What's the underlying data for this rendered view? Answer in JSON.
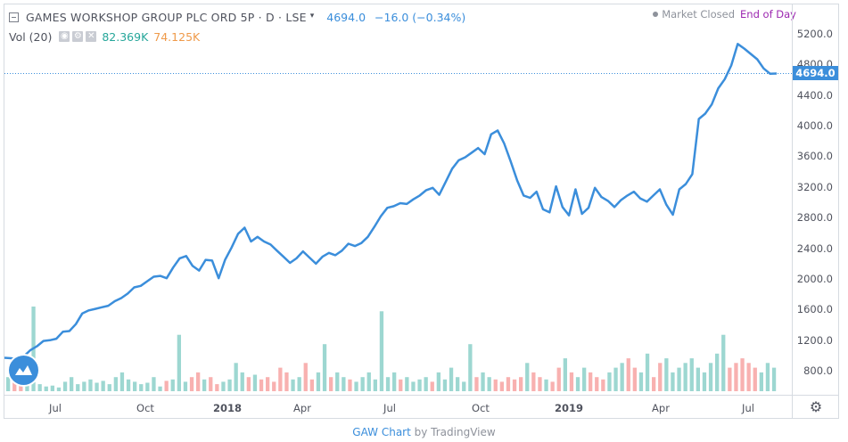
{
  "header": {
    "symbol": "GAMES WORKSHOP GROUP PLC ORD 5P · D · LSE",
    "price": "4694.0",
    "change": "−16.0 (−0.34%)",
    "market_status": "Market Closed",
    "data_mode": "End of Day"
  },
  "volume_indicator": {
    "label": "Vol (20)",
    "value1": "82.369K",
    "value2": "74.125K"
  },
  "price_tag": "4694.0",
  "credit": {
    "link": "GAW Chart",
    "by": "by TradingView"
  },
  "colors": {
    "line": "#3b8edb",
    "volume_up": "#26a69a",
    "volume_down": "#ef5350",
    "status_purple": "#9c27b0"
  },
  "icons": {
    "settings": "gear-icon",
    "logo": "tradingview-logo-icon",
    "collapse": "collapse-icon"
  },
  "chart_data": {
    "type": "line",
    "y_ticks": [
      "5200.0",
      "4800.0",
      "4400.0",
      "4000.0",
      "3600.0",
      "3200.0",
      "2800.0",
      "2400.0",
      "2000.0",
      "1600.0",
      "1200.0",
      "800.0"
    ],
    "x_ticks": [
      "Jul",
      "Oct",
      "2018",
      "Apr",
      "Jul",
      "Oct",
      "2019",
      "Apr",
      "Jul"
    ],
    "ylim": [
      400,
      5400
    ],
    "series": [
      {
        "values": [
          980,
          975,
          960,
          1000,
          1080,
          1130,
          1200,
          1210,
          1230,
          1320,
          1330,
          1420,
          1560,
          1600,
          1620,
          1640,
          1660,
          1720,
          1760,
          1820,
          1900,
          1920,
          1980,
          2040,
          2050,
          2020,
          2160,
          2280,
          2310,
          2180,
          2120,
          2260,
          2250,
          2020,
          2260,
          2420,
          2600,
          2680,
          2500,
          2560,
          2500,
          2460,
          2380,
          2300,
          2220,
          2280,
          2370,
          2290,
          2210,
          2300,
          2350,
          2320,
          2380,
          2470,
          2440,
          2480,
          2560,
          2690,
          2830,
          2940,
          2960,
          3000,
          2990,
          3050,
          3100,
          3170,
          3200,
          3110,
          3280,
          3450,
          3560,
          3600,
          3660,
          3720,
          3640,
          3900,
          3950,
          3780,
          3550,
          3300,
          3100,
          3070,
          3150,
          2920,
          2880,
          3220,
          2950,
          2840,
          3180,
          2860,
          2940,
          3200,
          3080,
          3030,
          2950,
          3040,
          3100,
          3150,
          3060,
          3020,
          3100,
          3180,
          2980,
          2850,
          3180,
          3250,
          3380,
          4100,
          4170,
          4290,
          4500,
          4620,
          4800,
          5080,
          5020,
          4950,
          4880,
          4760,
          4690,
          4694
        ],
        "y_unit": "price"
      },
      {
        "name": "Vol",
        "values": [
          30,
          20,
          15,
          25,
          180,
          15,
          10,
          12,
          8,
          20,
          30,
          15,
          20,
          25,
          18,
          22,
          15,
          30,
          40,
          25,
          20,
          15,
          18,
          30,
          10,
          22,
          25,
          120,
          20,
          30,
          40,
          25,
          30,
          15,
          20,
          25,
          60,
          40,
          30,
          35,
          25,
          30,
          20,
          50,
          40,
          25,
          30,
          60,
          25,
          40,
          100,
          30,
          40,
          30,
          25,
          20,
          30,
          40,
          25,
          170,
          30,
          40,
          25,
          30,
          20,
          25,
          30,
          20,
          40,
          25,
          50,
          30,
          20,
          100,
          30,
          40,
          30,
          25,
          20,
          30,
          25,
          30,
          60,
          40,
          30,
          25,
          20,
          50,
          70,
          40,
          30,
          50,
          40,
          30,
          25,
          40,
          50,
          60,
          70,
          50,
          40,
          80,
          30,
          60,
          70,
          40,
          50,
          60,
          70,
          50,
          40,
          60,
          80,
          120,
          50,
          60,
          70,
          60,
          50,
          40,
          60,
          50
        ]
      }
    ]
  }
}
